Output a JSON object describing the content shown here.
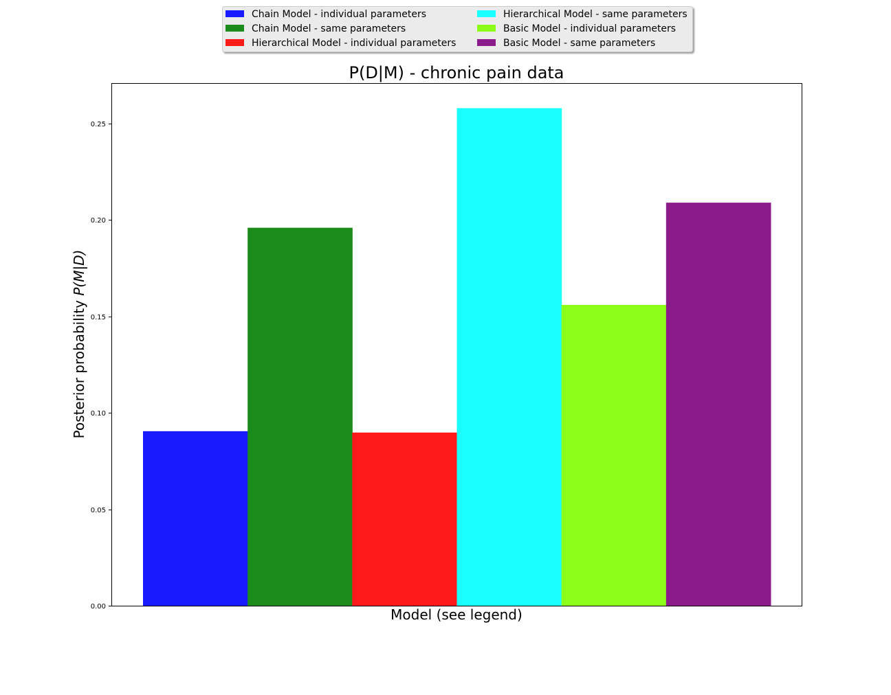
{
  "chart_data": {
    "type": "bar",
    "title": "P(D|M) - chronic pain data",
    "xlabel": "Model (see legend)",
    "ylabel_main": "Posterior probability ",
    "ylabel_math": "P(M|D)",
    "ylim": [
      0,
      0.271
    ],
    "yticks": [
      "0.00",
      "0.05",
      "0.10",
      "0.15",
      "0.20",
      "0.25"
    ],
    "legend_position": "top-center",
    "grid": false,
    "series": [
      {
        "name": "Chain Model - individual parameters",
        "value": 0.0905,
        "color": "#1a1aff"
      },
      {
        "name": "Chain Model - same parameters",
        "value": 0.196,
        "color": "#1b8b1b"
      },
      {
        "name": "Hierarchical Model - individual parameters",
        "value": 0.0898,
        "color": "#ff1a1a"
      },
      {
        "name": "Hierarchical Model - same parameters",
        "value": 0.258,
        "color": "#1affff"
      },
      {
        "name": "Basic Model - individual parameters",
        "value": 0.156,
        "color": "#8bff1a"
      },
      {
        "name": "Basic Model - same parameters",
        "value": 0.209,
        "color": "#8b1a8b"
      }
    ]
  }
}
